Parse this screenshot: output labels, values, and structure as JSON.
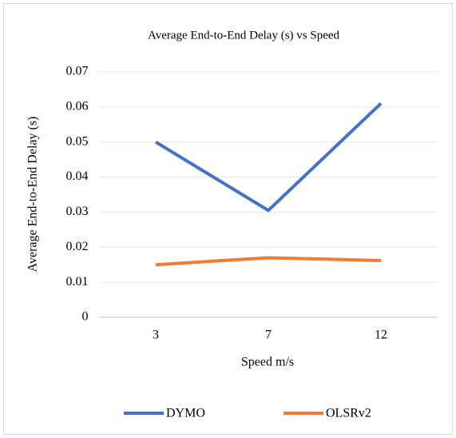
{
  "chart_data": {
    "type": "line",
    "title": "Average End-to-End Delay (s)  vs Speed",
    "x_label": "Speed m/s",
    "y_label": "Average End-to-End Delay (s)",
    "categories": [
      "3",
      "7",
      "12"
    ],
    "series": [
      {
        "name": "DYMO",
        "color": "#4472c4",
        "values": [
          0.05,
          0.0305,
          0.061
        ]
      },
      {
        "name": "OLSRv2",
        "color": "#ed7d31",
        "values": [
          0.015,
          0.017,
          0.0162
        ]
      }
    ],
    "ylim": [
      0,
      0.07
    ],
    "yticks": [
      0,
      0.01,
      0.02,
      0.03,
      0.04,
      0.05,
      0.06,
      0.07
    ],
    "grid": true,
    "legend": "bottom"
  }
}
